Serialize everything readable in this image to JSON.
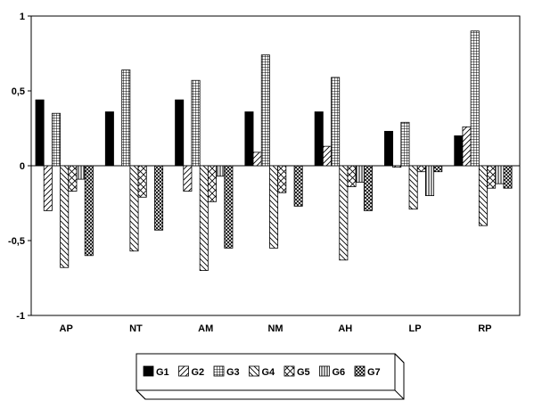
{
  "chart_data": {
    "type": "bar",
    "title": "",
    "xlabel": "",
    "ylabel": "",
    "ylim": [
      -1,
      1
    ],
    "yticks": [
      1,
      0.5,
      0,
      -0.5,
      -1
    ],
    "ytick_labels": [
      "1",
      "0,5",
      "0",
      "-0,5",
      "-1"
    ],
    "categories": [
      "AP",
      "NT",
      "AM",
      "NM",
      "AH",
      "LP",
      "RP"
    ],
    "grid": false,
    "legend_position": "bottom-center",
    "series": [
      {
        "name": "G1",
        "pattern": "solid",
        "values": [
          0.44,
          0.36,
          0.44,
          0.36,
          0.36,
          0.23,
          0.2
        ]
      },
      {
        "name": "G2",
        "pattern": "diag-light",
        "values": [
          -0.3,
          0.0,
          -0.17,
          0.09,
          0.13,
          -0.01,
          0.26
        ]
      },
      {
        "name": "G3",
        "pattern": "grid",
        "values": [
          0.35,
          0.64,
          0.57,
          0.74,
          0.59,
          0.29,
          0.9
        ]
      },
      {
        "name": "G4",
        "pattern": "diag-back",
        "values": [
          -0.68,
          -0.57,
          -0.7,
          -0.55,
          -0.63,
          -0.29,
          -0.4
        ]
      },
      {
        "name": "G5",
        "pattern": "cross",
        "values": [
          -0.17,
          -0.21,
          -0.24,
          -0.18,
          -0.14,
          -0.04,
          -0.15
        ]
      },
      {
        "name": "G6",
        "pattern": "vertical",
        "values": [
          -0.09,
          0.0,
          -0.07,
          0.0,
          -0.11,
          -0.2,
          -0.12
        ]
      },
      {
        "name": "G7",
        "pattern": "crosshatch",
        "values": [
          -0.6,
          -0.43,
          -0.55,
          -0.27,
          -0.3,
          -0.04,
          -0.15
        ]
      }
    ]
  }
}
